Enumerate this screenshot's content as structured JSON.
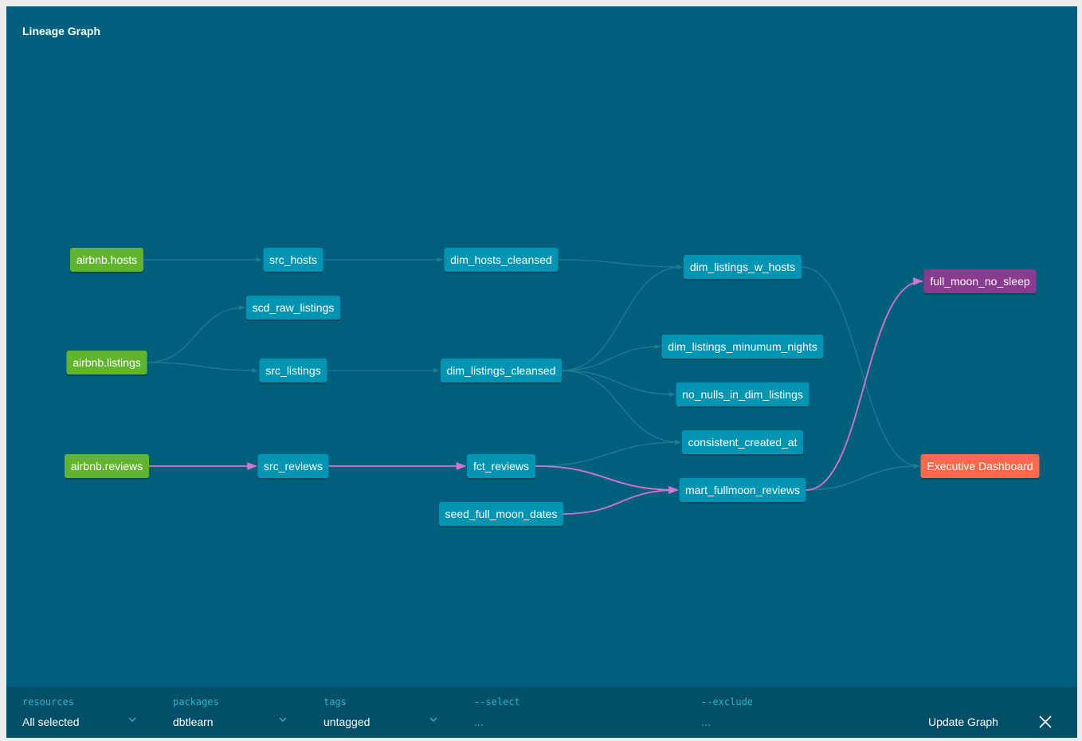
{
  "title": "Lineage Graph",
  "colors": {
    "background": "#005f7d",
    "source": "#62b42e",
    "model": "#0094b3",
    "exposure": "#ff694a",
    "highlight_model": "#8a3a8f",
    "edge": "#1f7d92",
    "edge_highlight": "#d176d6"
  },
  "nodes": [
    {
      "id": "airbnb_hosts",
      "label": "airbnb.hosts",
      "kind": "source"
    },
    {
      "id": "airbnb_listings",
      "label": "airbnb.listings",
      "kind": "source"
    },
    {
      "id": "airbnb_reviews",
      "label": "airbnb.reviews",
      "kind": "source"
    },
    {
      "id": "src_hosts",
      "label": "src_hosts",
      "kind": "model"
    },
    {
      "id": "scd_raw_listings",
      "label": "scd_raw_listings",
      "kind": "model"
    },
    {
      "id": "src_listings",
      "label": "src_listings",
      "kind": "model"
    },
    {
      "id": "src_reviews",
      "label": "src_reviews",
      "kind": "model"
    },
    {
      "id": "dim_hosts_cleansed",
      "label": "dim_hosts_cleansed",
      "kind": "model"
    },
    {
      "id": "dim_listings_cleansed",
      "label": "dim_listings_cleansed",
      "kind": "model"
    },
    {
      "id": "fct_reviews",
      "label": "fct_reviews",
      "kind": "model"
    },
    {
      "id": "seed_full_moon_dates",
      "label": "seed_full_moon_dates",
      "kind": "model"
    },
    {
      "id": "dim_listings_w_hosts",
      "label": "dim_listings_w_hosts",
      "kind": "model"
    },
    {
      "id": "dim_listings_minumum_nights",
      "label": "dim_listings_minumum_nights",
      "kind": "model"
    },
    {
      "id": "no_nulls_in_dim_listings",
      "label": "no_nulls_in_dim_listings",
      "kind": "model"
    },
    {
      "id": "consistent_created_at",
      "label": "consistent_created_at",
      "kind": "model"
    },
    {
      "id": "mart_fullmoon_reviews",
      "label": "mart_fullmoon_reviews",
      "kind": "model"
    },
    {
      "id": "full_moon_no_sleep",
      "label": "full_moon_no_sleep",
      "kind": "highlight_model"
    },
    {
      "id": "executive_dashboard",
      "label": "Executive Dashboard",
      "kind": "exposure"
    }
  ],
  "edges": [
    {
      "from": "airbnb_hosts",
      "to": "src_hosts",
      "highlight": false
    },
    {
      "from": "src_hosts",
      "to": "dim_hosts_cleansed",
      "highlight": false
    },
    {
      "from": "dim_hosts_cleansed",
      "to": "dim_listings_w_hosts",
      "highlight": false
    },
    {
      "from": "airbnb_listings",
      "to": "scd_raw_listings",
      "highlight": false
    },
    {
      "from": "airbnb_listings",
      "to": "src_listings",
      "highlight": false
    },
    {
      "from": "src_listings",
      "to": "dim_listings_cleansed",
      "highlight": false
    },
    {
      "from": "dim_listings_cleansed",
      "to": "dim_listings_w_hosts",
      "highlight": false
    },
    {
      "from": "dim_listings_cleansed",
      "to": "dim_listings_minumum_nights",
      "highlight": false
    },
    {
      "from": "dim_listings_cleansed",
      "to": "no_nulls_in_dim_listings",
      "highlight": false
    },
    {
      "from": "dim_listings_cleansed",
      "to": "consistent_created_at",
      "highlight": false
    },
    {
      "from": "fct_reviews",
      "to": "consistent_created_at",
      "highlight": false
    },
    {
      "from": "dim_listings_w_hosts",
      "to": "executive_dashboard",
      "highlight": false
    },
    {
      "from": "mart_fullmoon_reviews",
      "to": "executive_dashboard",
      "highlight": false
    },
    {
      "from": "airbnb_reviews",
      "to": "src_reviews",
      "highlight": true
    },
    {
      "from": "src_reviews",
      "to": "fct_reviews",
      "highlight": true
    },
    {
      "from": "fct_reviews",
      "to": "mart_fullmoon_reviews",
      "highlight": true
    },
    {
      "from": "seed_full_moon_dates",
      "to": "mart_fullmoon_reviews",
      "highlight": true
    },
    {
      "from": "mart_fullmoon_reviews",
      "to": "full_moon_no_sleep",
      "highlight": true
    }
  ],
  "toolbar": {
    "resources": {
      "label": "resources",
      "value": "All selected"
    },
    "packages": {
      "label": "packages",
      "value": "dbtlearn"
    },
    "tags": {
      "label": "tags",
      "value": "untagged"
    },
    "select": {
      "label": "--select",
      "value": "..."
    },
    "exclude": {
      "label": "--exclude",
      "value": "..."
    },
    "update_label": "Update Graph"
  }
}
